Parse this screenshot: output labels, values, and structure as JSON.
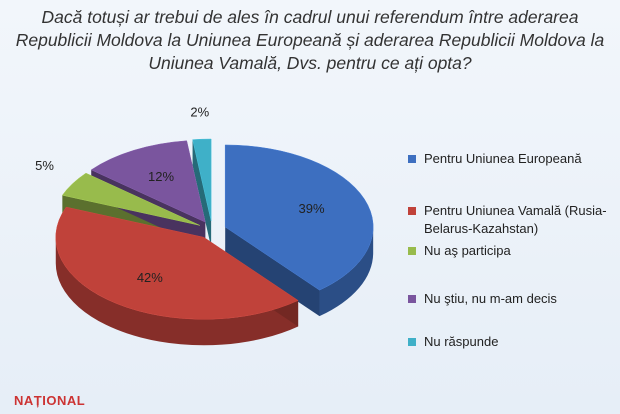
{
  "chart_data": {
    "type": "pie",
    "title": "Dacă totuși ar trebui de ales în cadrul unui referendum între aderarea Republicii Moldova la Uniunea Europeană și aderarea Republicii Moldova la Uniunea Vamală, Dvs. pentru ce ați opta?",
    "categories": [
      "Pentru Uniunea Europeană",
      "Pentru Uniunea Vamală (Rusia-Belarus-Kazahstan)",
      "Nu aş participa",
      "Nu ştiu, nu m-am decis",
      "Nu răspunde"
    ],
    "values": [
      39,
      42,
      5,
      12,
      2
    ],
    "value_labels": [
      "39%",
      "42%",
      "5%",
      "12%",
      "2%"
    ],
    "colors": [
      "#3d6fc0",
      "#c0423a",
      "#98bb4c",
      "#7a559e",
      "#3fb0c8"
    ],
    "legend": "right"
  },
  "watermark": "NAȚIONAL"
}
